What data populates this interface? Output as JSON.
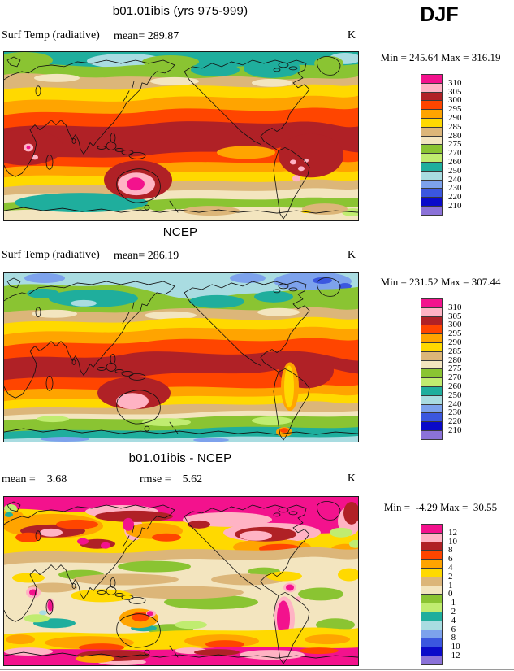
{
  "header": {
    "season": "DJF"
  },
  "palette": {
    "comment": "contour fill colors, warmest(top) to coldest(bottom)",
    "colors": [
      "#f3128d",
      "#ffb3c4",
      "#b02126",
      "#ff4500",
      "#ffa400",
      "#ffd900",
      "#dcb679",
      "#f3e5bf",
      "#8ac432",
      "#c0ec70",
      "#1fae9d",
      "#a9dce1",
      "#7da2ec",
      "#3b57df",
      "#0a0ac9",
      "#8b72d8"
    ]
  },
  "panels": [
    {
      "title": "b01.01ibis (yrs 975-999)",
      "var_label": "Surf Temp (radiative)",
      "mean_label": "mean= 289.87",
      "units": "K",
      "minmax": "Min = 245.64 Max = 316.19",
      "legend_labels": [
        "310",
        "305",
        "300",
        "295",
        "290",
        "285",
        "280",
        "275",
        "270",
        "260",
        "250",
        "240",
        "230",
        "220",
        "210"
      ]
    },
    {
      "title": "NCEP",
      "var_label": "Surf Temp (radiative)",
      "mean_label": "mean= 286.19",
      "units": "K",
      "minmax": "Min = 231.52 Max = 307.44",
      "legend_labels": [
        "310",
        "305",
        "300",
        "295",
        "290",
        "285",
        "280",
        "275",
        "270",
        "260",
        "250",
        "240",
        "230",
        "220",
        "210"
      ]
    },
    {
      "title": "b01.01ibis - NCEP",
      "mean_label": "mean =    3.68",
      "rmse_label": "rmse =    5.62",
      "units": "K",
      "minmax": "Min =  -4.29 Max =  30.55",
      "legend_labels": [
        "12",
        "10",
        "8",
        "6",
        "4",
        "2",
        "1",
        "0",
        "-1",
        "-2",
        "-4",
        "-6",
        "-8",
        "-10",
        "-12"
      ]
    }
  ],
  "chart_data": [
    {
      "type": "heatmap",
      "subtype": "filled-contour-world-map",
      "title": "b01.01ibis (yrs 975-999)",
      "season": "DJF",
      "variable": "Surf Temp (radiative)",
      "units": "K",
      "mean": 289.87,
      "min": 245.64,
      "max": 316.19,
      "contour_levels": [
        210,
        220,
        230,
        240,
        250,
        260,
        270,
        275,
        280,
        285,
        290,
        295,
        300,
        305,
        310
      ],
      "legend_position": "right"
    },
    {
      "type": "heatmap",
      "subtype": "filled-contour-world-map",
      "title": "NCEP",
      "season": "DJF",
      "variable": "Surf Temp (radiative)",
      "units": "K",
      "mean": 286.19,
      "min": 231.52,
      "max": 307.44,
      "contour_levels": [
        210,
        220,
        230,
        240,
        250,
        260,
        270,
        275,
        280,
        285,
        290,
        295,
        300,
        305,
        310
      ],
      "legend_position": "right"
    },
    {
      "type": "heatmap",
      "subtype": "filled-contour-world-map-difference",
      "title": "b01.01ibis - NCEP",
      "season": "DJF",
      "units": "K",
      "mean": 3.68,
      "rmse": 5.62,
      "min": -4.29,
      "max": 30.55,
      "contour_levels": [
        -12,
        -10,
        -8,
        -6,
        -4,
        -2,
        -1,
        0,
        1,
        2,
        4,
        6,
        8,
        10,
        12
      ],
      "legend_position": "right"
    }
  ]
}
